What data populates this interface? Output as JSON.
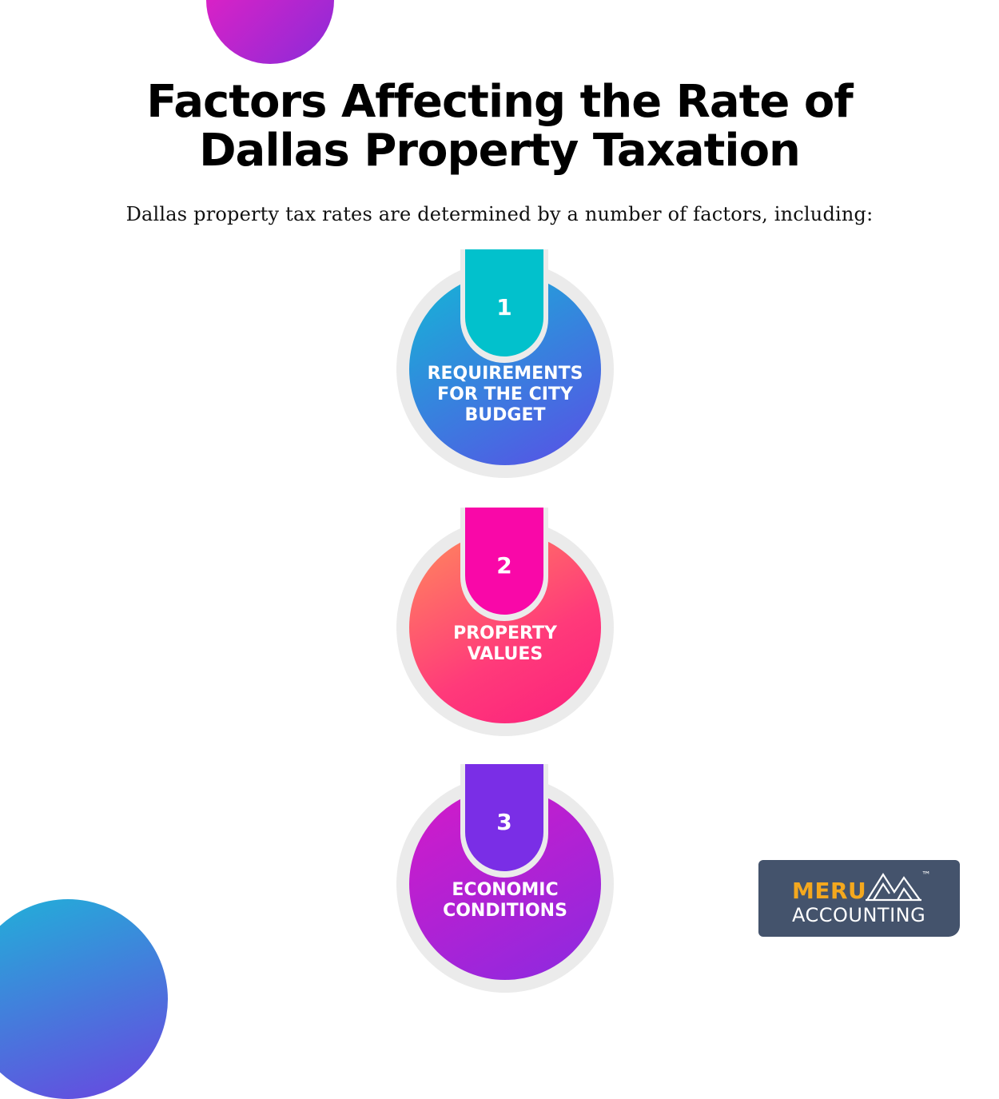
{
  "title": {
    "line1": "Factors Affecting the Rate of",
    "line2": "Dallas Property Taxation"
  },
  "subtitle": "Dallas property tax rates are determined by a number of factors, including:",
  "steps": [
    {
      "number": "1",
      "label_lines": [
        "REQUIREMENTS",
        "FOR THE CITY",
        "BUDGET"
      ],
      "color": "#02c1cc"
    },
    {
      "number": "2",
      "label_lines": [
        "PROPERTY",
        "VALUES"
      ],
      "color": "#f908a8"
    },
    {
      "number": "3",
      "label_lines": [
        "ECONOMIC",
        "CONDITIONS"
      ],
      "color": "#7a2ee6"
    }
  ],
  "logo": {
    "brand": "MERU",
    "sub": "ACCOUNTING",
    "trademark": "™",
    "icon": "mountain-icon",
    "brand_color": "#f4a81e",
    "background": "#44536c"
  }
}
